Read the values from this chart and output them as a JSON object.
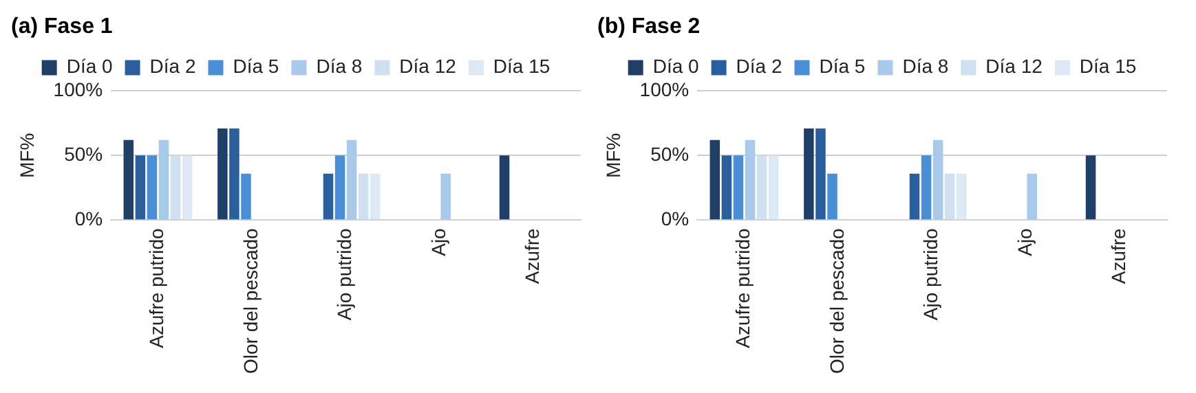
{
  "chart_data": [
    {
      "type": "bar",
      "title": "(a) Fase 1",
      "ylabel": "MF%",
      "categories": [
        "Azufre putrido",
        "Olor del pescado",
        "Ajo putrido",
        "Ajo",
        "Azufre"
      ],
      "ylim": [
        0,
        100
      ],
      "yticks": [
        {
          "value": 0,
          "label": "0%"
        },
        {
          "value": 50,
          "label": "50%"
        },
        {
          "value": 100,
          "label": "100%"
        }
      ],
      "grid": "y",
      "legend": "top",
      "series": [
        {
          "name": "Día 0",
          "color": "#1f3f66",
          "values": [
            62,
            71,
            0,
            0,
            50
          ]
        },
        {
          "name": "Día 2",
          "color": "#2a5e9c",
          "values": [
            50,
            71,
            36,
            0,
            0
          ]
        },
        {
          "name": "Día 5",
          "color": "#4a8fd6",
          "values": [
            50,
            36,
            50,
            0,
            0
          ]
        },
        {
          "name": "Día 8",
          "color": "#a9c9ea",
          "values": [
            62,
            0,
            62,
            36,
            0
          ]
        },
        {
          "name": "Día 12",
          "color": "#cfe0f1",
          "values": [
            50,
            0,
            36,
            0,
            0
          ]
        },
        {
          "name": "Día 15",
          "color": "#dde9f5",
          "values": [
            50,
            0,
            36,
            0,
            0
          ]
        }
      ]
    },
    {
      "type": "bar",
      "title": "(b) Fase 2",
      "ylabel": "MF%",
      "categories": [
        "Azufre putrido",
        "Olor del pescado",
        "Ajo putrido",
        "Ajo",
        "Azufre"
      ],
      "ylim": [
        0,
        100
      ],
      "yticks": [
        {
          "value": 0,
          "label": "0%"
        },
        {
          "value": 50,
          "label": "50%"
        },
        {
          "value": 100,
          "label": "100%"
        }
      ],
      "grid": "y",
      "legend": "top",
      "series": [
        {
          "name": "Día 0",
          "color": "#1f3f66",
          "values": [
            62,
            71,
            0,
            0,
            50
          ]
        },
        {
          "name": "Día 2",
          "color": "#2a5e9c",
          "values": [
            50,
            71,
            36,
            0,
            0
          ]
        },
        {
          "name": "Día 5",
          "color": "#4a8fd6",
          "values": [
            50,
            36,
            50,
            0,
            0
          ]
        },
        {
          "name": "Día 8",
          "color": "#a9c9ea",
          "values": [
            62,
            0,
            62,
            36,
            0
          ]
        },
        {
          "name": "Día 12",
          "color": "#cfe0f1",
          "values": [
            50,
            0,
            36,
            0,
            0
          ]
        },
        {
          "name": "Día 15",
          "color": "#dde9f5",
          "values": [
            50,
            0,
            36,
            0,
            0
          ]
        }
      ]
    }
  ]
}
